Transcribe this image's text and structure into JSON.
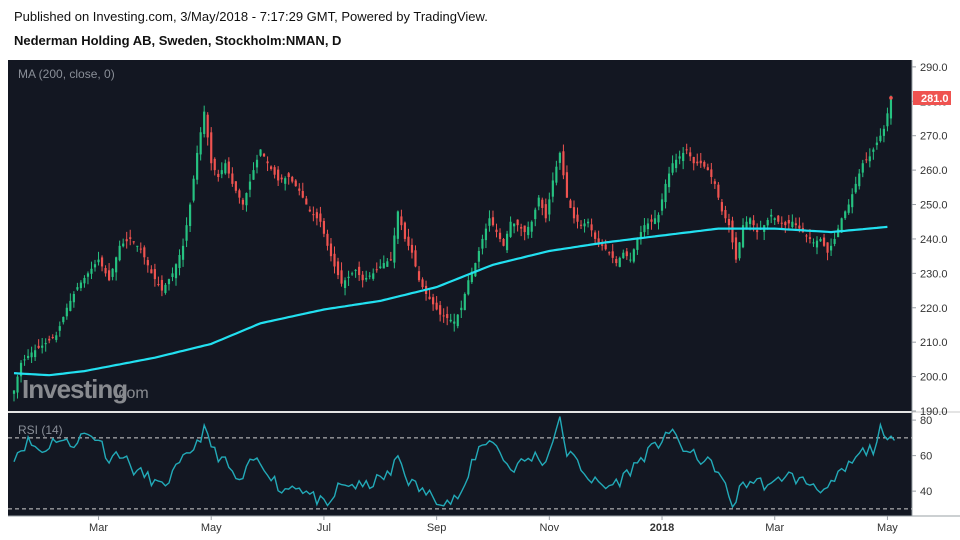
{
  "header": {
    "published": "Published on Investing.com, 3/May/2018 - 7:17:29 GMT, Powered by TradingView.",
    "instrument": "Nederman Holding AB, Sweden, Stockholm:NMAN, D"
  },
  "chart_data": [
    {
      "type": "candlestick",
      "title": "Nederman Holding AB, Sweden, Stockholm:NMAN, D",
      "indicator_label": "MA (200, close, 0)",
      "watermark": "Investing.com",
      "ylim": [
        190,
        292
      ],
      "y_ticks": [
        190.0,
        200.0,
        210.0,
        220.0,
        230.0,
        240.0,
        250.0,
        260.0,
        270.0,
        280.0,
        290.0
      ],
      "y_tick_labels": [
        "190.0",
        "200.0",
        "210.0",
        "220.0",
        "230.0",
        "240.0",
        "250.0",
        "260.0",
        "270.0",
        "280.0",
        "290.0"
      ],
      "last_price": 281.0,
      "last_price_label": "281.0",
      "x_ticks": [
        "Mar",
        "May",
        "Jul",
        "Sep",
        "Nov",
        "2018",
        "Mar",
        "May"
      ],
      "x_tick_index": [
        24,
        56,
        88,
        120,
        152,
        184,
        216,
        248
      ],
      "n_days": 252,
      "close_key": [
        [
          0,
          196
        ],
        [
          2,
          204
        ],
        [
          5,
          207
        ],
        [
          8,
          209
        ],
        [
          12,
          212
        ],
        [
          15,
          220
        ],
        [
          18,
          226
        ],
        [
          21,
          230
        ],
        [
          24,
          234
        ],
        [
          27,
          228
        ],
        [
          30,
          238
        ],
        [
          33,
          240
        ],
        [
          36,
          237
        ],
        [
          39,
          230
        ],
        [
          42,
          225
        ],
        [
          45,
          230
        ],
        [
          48,
          238
        ],
        [
          50,
          250
        ],
        [
          52,
          265
        ],
        [
          54,
          277
        ],
        [
          56,
          262
        ],
        [
          58,
          258
        ],
        [
          60,
          262
        ],
        [
          62,
          256
        ],
        [
          65,
          250
        ],
        [
          68,
          260
        ],
        [
          70,
          266
        ],
        [
          72,
          262
        ],
        [
          75,
          257
        ],
        [
          78,
          258
        ],
        [
          81,
          254
        ],
        [
          84,
          248
        ],
        [
          87,
          245
        ],
        [
          89,
          238
        ],
        [
          91,
          232
        ],
        [
          93,
          227
        ],
        [
          95,
          229
        ],
        [
          97,
          231
        ],
        [
          99,
          228
        ],
        [
          102,
          230
        ],
        [
          105,
          233
        ],
        [
          107,
          234
        ],
        [
          109,
          248
        ],
        [
          111,
          240
        ],
        [
          113,
          236
        ],
        [
          115,
          228
        ],
        [
          117,
          224
        ],
        [
          119,
          221
        ],
        [
          121,
          218
        ],
        [
          123,
          217
        ],
        [
          125,
          216
        ],
        [
          127,
          220
        ],
        [
          129,
          228
        ],
        [
          131,
          233
        ],
        [
          133,
          240
        ],
        [
          135,
          246
        ],
        [
          137,
          242
        ],
        [
          139,
          238
        ],
        [
          141,
          245
        ],
        [
          143,
          244
        ],
        [
          145,
          242
        ],
        [
          147,
          245
        ],
        [
          149,
          252
        ],
        [
          151,
          246
        ],
        [
          153,
          257
        ],
        [
          155,
          265
        ],
        [
          157,
          252
        ],
        [
          159,
          246
        ],
        [
          161,
          244
        ],
        [
          163,
          245
        ],
        [
          165,
          240
        ],
        [
          167,
          238
        ],
        [
          169,
          236
        ],
        [
          171,
          233
        ],
        [
          173,
          236
        ],
        [
          175,
          234
        ],
        [
          177,
          240
        ],
        [
          179,
          244
        ],
        [
          181,
          245
        ],
        [
          183,
          247
        ],
        [
          185,
          256
        ],
        [
          187,
          262
        ],
        [
          189,
          264
        ],
        [
          191,
          266
        ],
        [
          193,
          262
        ],
        [
          195,
          262
        ],
        [
          197,
          260
        ],
        [
          199,
          256
        ],
        [
          201,
          248
        ],
        [
          203,
          244
        ],
        [
          205,
          234
        ],
        [
          207,
          244
        ],
        [
          209,
          246
        ],
        [
          211,
          242
        ],
        [
          213,
          244
        ],
        [
          215,
          247
        ],
        [
          217,
          245
        ],
        [
          219,
          244
        ],
        [
          221,
          245
        ],
        [
          223,
          243
        ],
        [
          225,
          241
        ],
        [
          227,
          239
        ],
        [
          229,
          240
        ],
        [
          231,
          236
        ],
        [
          233,
          240
        ],
        [
          235,
          246
        ],
        [
          237,
          250
        ],
        [
          239,
          256
        ],
        [
          241,
          262
        ],
        [
          243,
          264
        ],
        [
          245,
          268
        ],
        [
          247,
          272
        ],
        [
          249,
          281
        ]
      ],
      "ma200_key": [
        [
          0,
          201.0
        ],
        [
          10,
          200.4
        ],
        [
          20,
          201.6
        ],
        [
          40,
          205.5
        ],
        [
          56,
          209.5
        ],
        [
          70,
          215.5
        ],
        [
          88,
          219.5
        ],
        [
          104,
          222.0
        ],
        [
          120,
          226.0
        ],
        [
          136,
          232.5
        ],
        [
          152,
          236.5
        ],
        [
          168,
          239.0
        ],
        [
          184,
          241.0
        ],
        [
          200,
          243.0
        ],
        [
          216,
          243.0
        ],
        [
          232,
          242.0
        ],
        [
          248,
          243.5
        ]
      ],
      "rsi": {
        "label": "RSI (14)",
        "ylim": [
          26,
          84
        ],
        "y_ticks": [
          40,
          60,
          80
        ],
        "y_tick_labels": [
          "40",
          "60",
          "80"
        ],
        "dashed_levels": [
          30,
          70
        ],
        "key": [
          [
            0,
            60
          ],
          [
            4,
            68
          ],
          [
            8,
            62
          ],
          [
            12,
            70
          ],
          [
            16,
            66
          ],
          [
            20,
            72
          ],
          [
            24,
            70
          ],
          [
            27,
            58
          ],
          [
            30,
            62
          ],
          [
            34,
            52
          ],
          [
            38,
            48
          ],
          [
            42,
            42
          ],
          [
            46,
            52
          ],
          [
            50,
            62
          ],
          [
            54,
            74
          ],
          [
            57,
            62
          ],
          [
            60,
            56
          ],
          [
            64,
            44
          ],
          [
            68,
            58
          ],
          [
            72,
            52
          ],
          [
            76,
            40
          ],
          [
            80,
            44
          ],
          [
            84,
            38
          ],
          [
            87,
            34
          ],
          [
            89,
            30
          ],
          [
            92,
            42
          ],
          [
            95,
            44
          ],
          [
            99,
            42
          ],
          [
            103,
            46
          ],
          [
            107,
            50
          ],
          [
            109,
            60
          ],
          [
            112,
            46
          ],
          [
            116,
            40
          ],
          [
            120,
            36
          ],
          [
            124,
            34
          ],
          [
            128,
            40
          ],
          [
            130,
            56
          ],
          [
            132,
            64
          ],
          [
            135,
            70
          ],
          [
            138,
            62
          ],
          [
            141,
            52
          ],
          [
            144,
            56
          ],
          [
            148,
            60
          ],
          [
            151,
            56
          ],
          [
            153,
            70
          ],
          [
            155,
            80
          ],
          [
            157,
            62
          ],
          [
            160,
            56
          ],
          [
            164,
            46
          ],
          [
            168,
            42
          ],
          [
            172,
            46
          ],
          [
            176,
            54
          ],
          [
            180,
            62
          ],
          [
            183,
            66
          ],
          [
            185,
            74
          ],
          [
            188,
            70
          ],
          [
            191,
            62
          ],
          [
            195,
            58
          ],
          [
            199,
            54
          ],
          [
            202,
            42
          ],
          [
            204,
            32
          ],
          [
            207,
            44
          ],
          [
            211,
            46
          ],
          [
            215,
            42
          ],
          [
            219,
            50
          ],
          [
            223,
            46
          ],
          [
            227,
            44
          ],
          [
            231,
            40
          ],
          [
            234,
            48
          ],
          [
            238,
            56
          ],
          [
            241,
            62
          ],
          [
            244,
            64
          ],
          [
            246,
            74
          ],
          [
            248,
            66
          ],
          [
            250,
            72
          ]
        ]
      }
    }
  ],
  "colors": {
    "background": "#131722",
    "up": "#26c281",
    "down": "#ef5350",
    "ma": "#22e0f0",
    "rsi": "#22aab8",
    "price_tag": "#ef5350"
  }
}
